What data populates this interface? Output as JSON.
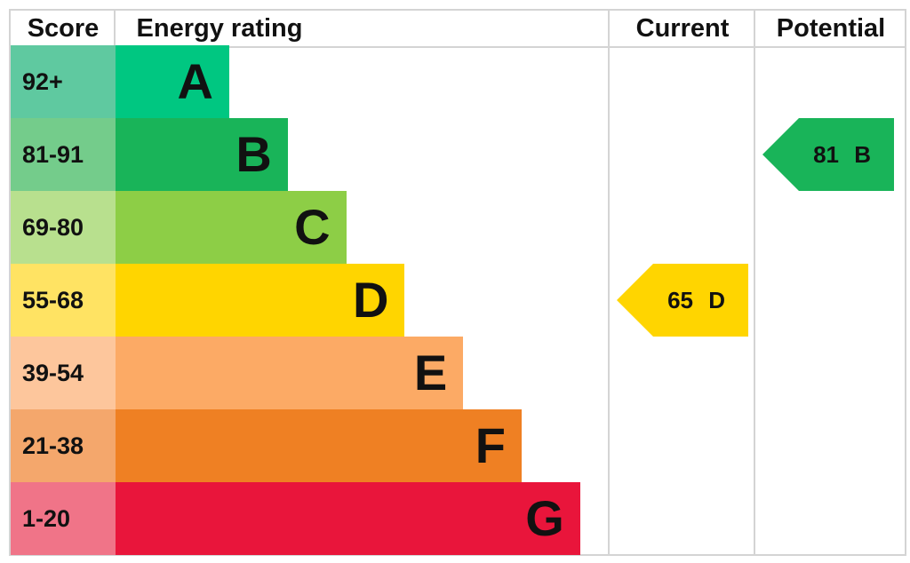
{
  "chart_data": {
    "type": "table",
    "headers": {
      "score": "Score",
      "rating": "Energy rating",
      "current": "Current",
      "potential": "Potential"
    },
    "bands": [
      {
        "score": "92+",
        "letter": "A",
        "color": "#00c781",
        "score_color": "#5fc9a0"
      },
      {
        "score": "81-91",
        "letter": "B",
        "color": "#19b459",
        "score_color": "#74cc8b"
      },
      {
        "score": "69-80",
        "letter": "C",
        "color": "#8dce46",
        "score_color": "#b8e08e"
      },
      {
        "score": "55-68",
        "letter": "D",
        "color": "#ffd500",
        "score_color": "#ffe363"
      },
      {
        "score": "39-54",
        "letter": "E",
        "color": "#fcaa65",
        "score_color": "#fdc69c"
      },
      {
        "score": "21-38",
        "letter": "F",
        "color": "#ef8023",
        "score_color": "#f4a76c"
      },
      {
        "score": "1-20",
        "letter": "G",
        "color": "#e9153b",
        "score_color": "#f07488"
      }
    ],
    "current": {
      "value": 65,
      "letter": "D",
      "label": "65 D",
      "color": "#ffd500"
    },
    "potential": {
      "value": 81,
      "letter": "B",
      "label": "81 B",
      "color": "#19b459"
    }
  }
}
